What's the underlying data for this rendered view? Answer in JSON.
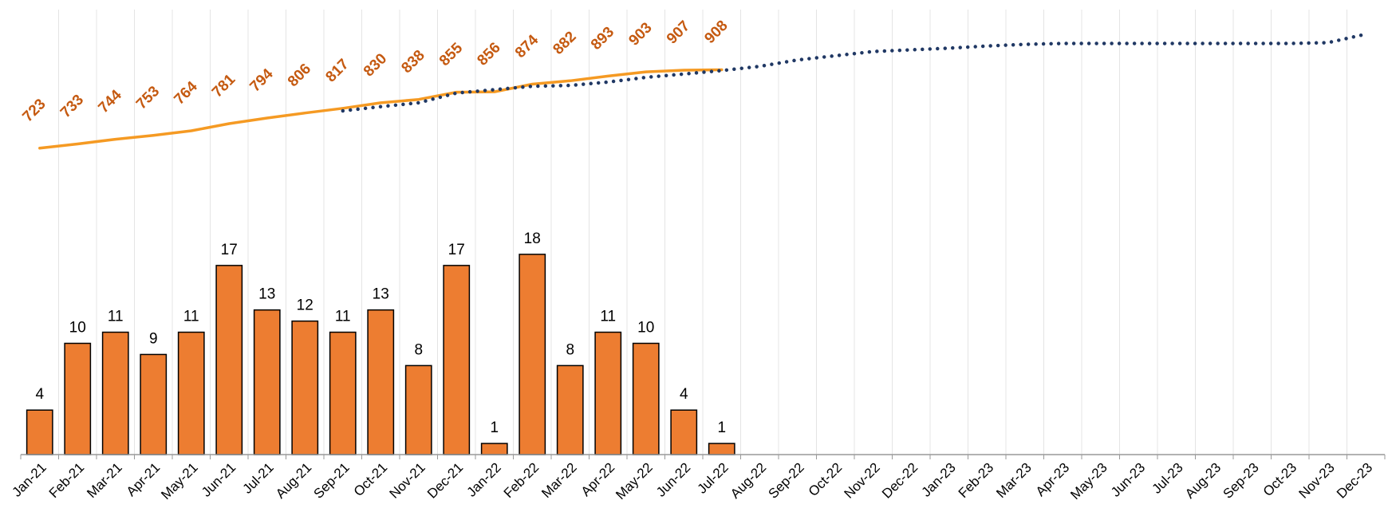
{
  "chart_data": {
    "type": "combo",
    "categories": [
      "Jan-21",
      "Feb-21",
      "Mar-21",
      "Apr-21",
      "May-21",
      "Jun-21",
      "Jul-21",
      "Aug-21",
      "Sep-21",
      "Oct-21",
      "Nov-21",
      "Dec-21",
      "Jan-22",
      "Feb-22",
      "Mar-22",
      "Apr-22",
      "May-22",
      "Jun-22",
      "Jul-22",
      "Aug-22",
      "Sep-22",
      "Oct-22",
      "Nov-22",
      "Dec-22",
      "Jan-23",
      "Feb-23",
      "Mar-23",
      "Apr-23",
      "May-23",
      "Jun-23",
      "Jul-23",
      "Aug-23",
      "Sep-23",
      "Oct-23",
      "Nov-23",
      "Dec-23"
    ],
    "ylim": [
      0,
      40
    ],
    "y2lim": [
      0,
      1050
    ],
    "grid": true,
    "series": [
      {
        "type": "bar",
        "color": "#ed7d31",
        "data_labels": true,
        "values": [
          4,
          10,
          11,
          9,
          11,
          17,
          13,
          12,
          11,
          13,
          8,
          17,
          1,
          18,
          8,
          11,
          10,
          4,
          1,
          null,
          null,
          null,
          null,
          null,
          null,
          null,
          null,
          null,
          null,
          null,
          null,
          null,
          null,
          null,
          null,
          null
        ]
      },
      {
        "type": "line",
        "axis": "y2",
        "color": "#f59a23",
        "label_color": "#c55a11",
        "data_labels": true,
        "values": [
          723,
          733,
          744,
          753,
          764,
          781,
          794,
          806,
          817,
          830,
          838,
          855,
          856,
          874,
          882,
          893,
          903,
          907,
          908,
          null,
          null,
          null,
          null,
          null,
          null,
          null,
          null,
          null,
          null,
          null,
          null,
          null,
          null,
          null,
          null,
          null
        ]
      },
      {
        "type": "line",
        "axis": "y2",
        "color": "#203864",
        "dotted": true,
        "data_labels": false,
        "values": [
          null,
          null,
          null,
          null,
          null,
          null,
          null,
          null,
          811,
          821,
          830,
          853,
          861,
          869,
          871,
          879,
          890,
          898,
          906,
          916,
          931,
          941,
          951,
          955,
          959,
          964,
          968,
          970,
          970,
          970,
          970,
          970,
          970,
          970,
          972,
          992
        ]
      }
    ]
  }
}
